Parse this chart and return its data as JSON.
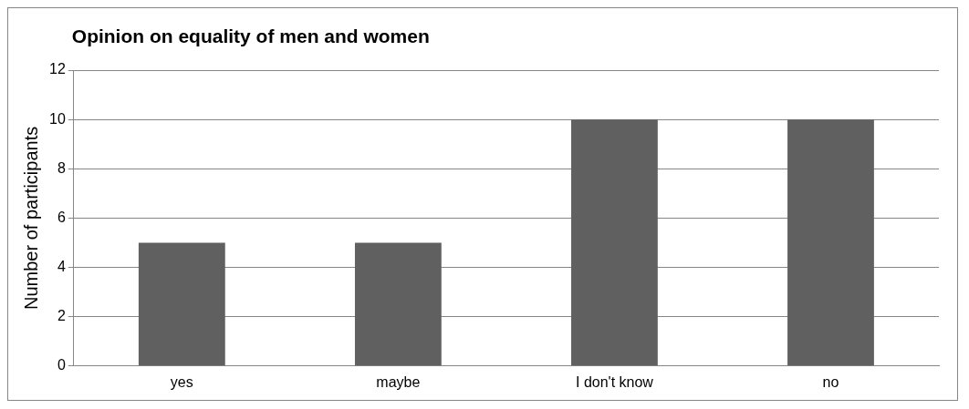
{
  "chart_data": {
    "type": "bar",
    "title": "Opinion on equality of men and women",
    "ylabel": "Number of participants",
    "categories": [
      "yes",
      "maybe",
      "I don't know",
      "no"
    ],
    "values": [
      5,
      5,
      10,
      10
    ],
    "color": "#606060",
    "ylim": [
      0,
      12
    ],
    "yticks": [
      0,
      2,
      4,
      6,
      8,
      10,
      12
    ],
    "grid": "y",
    "legend": false
  }
}
